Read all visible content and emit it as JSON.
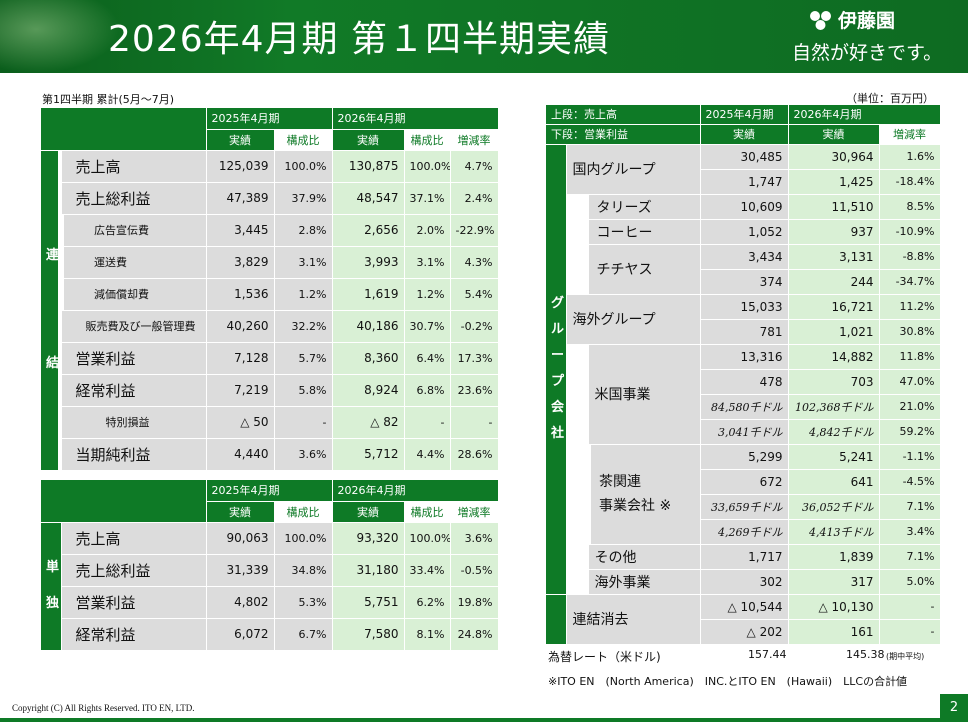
{
  "title": "2026年4月期 第１四半期実績",
  "logo": {
    "name": "伊藤園",
    "slogan": "自然が好きです。"
  },
  "subtitle": "第1四半期 累計(5月～7月)",
  "unit": "（単位：百万円）",
  "consolidated": {
    "side_label": [
      "連",
      "結"
    ],
    "year_prev": "2025年4月期",
    "year_curr": "2026年4月期",
    "col_actual": "実績",
    "col_ratio": "構成比",
    "col_growth": "増減率",
    "rows": [
      {
        "label": "売上高",
        "prev": "125,039",
        "prev_r": "100.0%",
        "curr": "130,875",
        "curr_r": "100.0%",
        "growth": "4.7%"
      },
      {
        "label": "売上総利益",
        "prev": "47,389",
        "prev_r": "37.9%",
        "curr": "48,547",
        "curr_r": "37.1%",
        "growth": "2.4%"
      },
      {
        "label": "広告宣伝費",
        "prev": "3,445",
        "prev_r": "2.8%",
        "curr": "2,656",
        "curr_r": "2.0%",
        "growth": "-22.9%"
      },
      {
        "label": "運送費",
        "prev": "3,829",
        "prev_r": "3.1%",
        "curr": "3,993",
        "curr_r": "3.1%",
        "growth": "4.3%"
      },
      {
        "label": "減価償却費",
        "prev": "1,536",
        "prev_r": "1.2%",
        "curr": "1,619",
        "curr_r": "1.2%",
        "growth": "5.4%"
      },
      {
        "label": "販売費及び一般管理費",
        "prev": "40,260",
        "prev_r": "32.2%",
        "curr": "40,186",
        "curr_r": "30.7%",
        "growth": "-0.2%"
      },
      {
        "label": "営業利益",
        "prev": "7,128",
        "prev_r": "5.7%",
        "curr": "8,360",
        "curr_r": "6.4%",
        "growth": "17.3%"
      },
      {
        "label": "経常利益",
        "prev": "7,219",
        "prev_r": "5.8%",
        "curr": "8,924",
        "curr_r": "6.8%",
        "growth": "23.6%"
      },
      {
        "label": "特別損益",
        "prev": "△ 50",
        "prev_r": "-",
        "curr": "△ 82",
        "curr_r": "-",
        "growth": "-"
      },
      {
        "label": "当期純利益",
        "prev": "4,440",
        "prev_r": "3.6%",
        "curr": "5,712",
        "curr_r": "4.4%",
        "growth": "28.6%"
      }
    ]
  },
  "standalone": {
    "side_label": [
      "単",
      "独"
    ],
    "year_prev": "2025年4月期",
    "year_curr": "2026年4月期",
    "col_actual": "実績",
    "col_ratio": "構成比",
    "col_growth": "増減率",
    "rows": [
      {
        "label": "売上高",
        "prev": "90,063",
        "prev_r": "100.0%",
        "curr": "93,320",
        "curr_r": "100.0%",
        "growth": "3.6%"
      },
      {
        "label": "売上総利益",
        "prev": "31,339",
        "prev_r": "34.8%",
        "curr": "31,180",
        "curr_r": "33.4%",
        "growth": "-0.5%"
      },
      {
        "label": "営業利益",
        "prev": "4,802",
        "prev_r": "5.3%",
        "curr": "5,751",
        "curr_r": "6.2%",
        "growth": "19.8%"
      },
      {
        "label": "経常利益",
        "prev": "6,072",
        "prev_r": "6.7%",
        "curr": "7,580",
        "curr_r": "8.1%",
        "growth": "24.8%"
      }
    ]
  },
  "group": {
    "header_upper": "上段：売上高",
    "header_lower": "下段：営業利益",
    "year_prev": "2025年4月期",
    "year_curr": "2026年4月期",
    "col_actual": "実績",
    "col_growth": "増減率",
    "side_label": [
      "グ",
      "ル",
      "ー",
      "プ",
      "会",
      "社"
    ],
    "domestic": {
      "label": "国内グループ",
      "r1": [
        "30,485",
        "30,964",
        "1.6%"
      ],
      "r2": [
        "1,747",
        "1,425",
        "-18.4%"
      ]
    },
    "tullys": {
      "label1": "タリーズ",
      "label2": "コーヒー",
      "r1": [
        "10,609",
        "11,510",
        "8.5%"
      ],
      "r2": [
        "1,052",
        "937",
        "-10.9%"
      ]
    },
    "chichiyasu": {
      "label": "チチヤス",
      "r1": [
        "3,434",
        "3,131",
        "-8.8%"
      ],
      "r2": [
        "374",
        "244",
        "-34.7%"
      ]
    },
    "overseas": {
      "label": "海外グループ",
      "r1": [
        "15,033",
        "16,721",
        "11.2%"
      ],
      "r2": [
        "781",
        "1,021",
        "30.8%"
      ]
    },
    "us": {
      "label": "米国事業",
      "r1": [
        "13,316",
        "14,882",
        "11.8%"
      ],
      "r2": [
        "478",
        "703",
        "47.0%"
      ],
      "r3": [
        "84,580千ドル",
        "102,368千ドル",
        "21.0%"
      ],
      "r4": [
        "3,041千ドル",
        "4,842千ドル",
        "59.2%"
      ]
    },
    "tea": {
      "label1": "茶関連",
      "label2": "事業会社 ※",
      "r1": [
        "5,299",
        "5,241",
        "-1.1%"
      ],
      "r2": [
        "672",
        "641",
        "-4.5%"
      ],
      "r3": [
        "33,659千ドル",
        "36,052千ドル",
        "7.1%"
      ],
      "r4": [
        "4,269千ドル",
        "4,413千ドル",
        "3.4%"
      ]
    },
    "other": {
      "label1": "その他",
      "label2": "海外事業",
      "r1": [
        "1,717",
        "1,839",
        "7.1%"
      ],
      "r2": [
        "302",
        "317",
        "5.0%"
      ]
    },
    "elim": {
      "label": "連結消去",
      "r1": [
        "△ 10,544",
        "△ 10,130",
        "-"
      ],
      "r2": [
        "△ 202",
        "161",
        "-"
      ]
    }
  },
  "fx": {
    "label": "為替レート（米ドル)",
    "prev": "157.44",
    "curr": "145.38",
    "note": "(期中平均)"
  },
  "footnote": "※ITO EN　(North America)　INC.とITO EN　(Hawaii)　LLCの合計値",
  "copyright": "Copyright (C) All Rights Reserved. ITO EN, LTD.",
  "page_number": "2"
}
